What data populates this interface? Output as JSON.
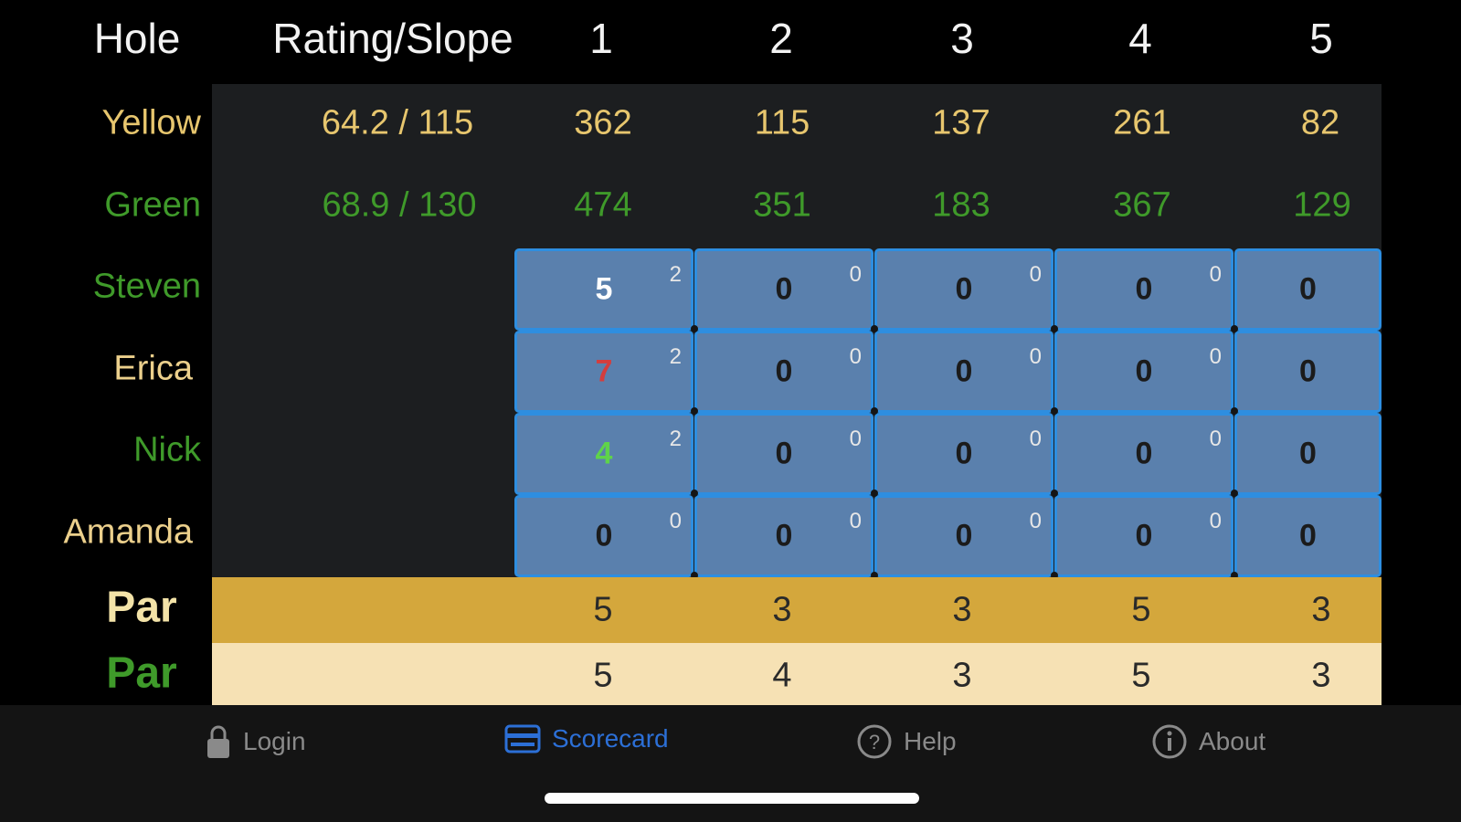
{
  "header": {
    "hole_label": "Hole",
    "rating_label": "Rating/Slope",
    "holes": [
      "1",
      "2",
      "3",
      "4",
      "5"
    ]
  },
  "tees": [
    {
      "name": "Yellow",
      "rating": "64.2 / 115",
      "yardages": [
        "362",
        "115",
        "137",
        "261",
        "82"
      ],
      "color": "#e7c66e"
    },
    {
      "name": "Green",
      "rating": "68.9 / 130",
      "yardages": [
        "474",
        "351",
        "183",
        "367",
        "129"
      ],
      "color": "#3f9a2a"
    }
  ],
  "players": [
    {
      "name": "Steven",
      "color": "#3f9a2a",
      "scores": [
        {
          "score": "5",
          "strokes": "2",
          "score_color": "#ffffff"
        },
        {
          "score": "0",
          "strokes": "0"
        },
        {
          "score": "0",
          "strokes": "0"
        },
        {
          "score": "0",
          "strokes": "0"
        },
        {
          "score": "0",
          "strokes": ""
        }
      ]
    },
    {
      "name": "Erica",
      "color": "#ecd08c",
      "scores": [
        {
          "score": "7",
          "strokes": "2",
          "score_color": "#d43d3d"
        },
        {
          "score": "0",
          "strokes": "0"
        },
        {
          "score": "0",
          "strokes": "0"
        },
        {
          "score": "0",
          "strokes": "0"
        },
        {
          "score": "0",
          "strokes": ""
        }
      ]
    },
    {
      "name": "Nick",
      "color": "#3f9a2a",
      "scores": [
        {
          "score": "4",
          "strokes": "2",
          "score_color": "#5fd34a"
        },
        {
          "score": "0",
          "strokes": "0"
        },
        {
          "score": "0",
          "strokes": "0"
        },
        {
          "score": "0",
          "strokes": "0"
        },
        {
          "score": "0",
          "strokes": ""
        }
      ]
    },
    {
      "name": "Amanda",
      "color": "#ecd08c",
      "scores": [
        {
          "score": "0",
          "strokes": "0"
        },
        {
          "score": "0",
          "strokes": "0"
        },
        {
          "score": "0",
          "strokes": "0"
        },
        {
          "score": "0",
          "strokes": "0"
        },
        {
          "score": "0",
          "strokes": ""
        }
      ]
    }
  ],
  "par_rows": [
    {
      "label": "Par",
      "label_color": "#f3e3a8",
      "values": [
        "5",
        "3",
        "3",
        "5",
        "3"
      ]
    },
    {
      "label": "Par",
      "label_color": "#3f9a2a",
      "values": [
        "5",
        "4",
        "3",
        "5",
        "3"
      ]
    }
  ],
  "tabs": [
    {
      "label": "Login",
      "icon": "lock-icon",
      "active": false
    },
    {
      "label": "Scorecard",
      "icon": "scorecard-icon",
      "active": true
    },
    {
      "label": "Help",
      "icon": "help-icon",
      "active": false
    },
    {
      "label": "About",
      "icon": "info-icon",
      "active": false
    }
  ]
}
